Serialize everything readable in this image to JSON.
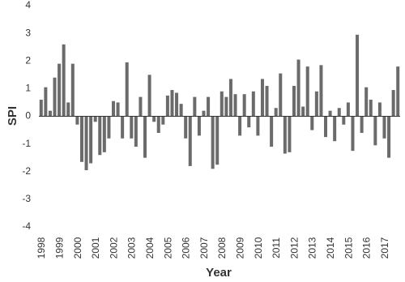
{
  "chart_data": {
    "type": "bar",
    "x_label": "Year",
    "y_label": "SPI",
    "categories": [
      "1998",
      null,
      null,
      null,
      "1999",
      null,
      null,
      null,
      "2000",
      null,
      null,
      null,
      "2001",
      null,
      null,
      null,
      "2002",
      null,
      null,
      null,
      "2003",
      null,
      null,
      null,
      "2004",
      null,
      null,
      null,
      "2005",
      null,
      null,
      null,
      "2006",
      null,
      null,
      null,
      "2007",
      null,
      null,
      null,
      "2008",
      null,
      null,
      null,
      "2009",
      null,
      null,
      null,
      "2010",
      null,
      null,
      null,
      "2011",
      null,
      null,
      null,
      "2012",
      null,
      null,
      null,
      "2013",
      null,
      null,
      null,
      "2014",
      null,
      null,
      null,
      "2015",
      null,
      null,
      null,
      "2016",
      null,
      null,
      null,
      "2017",
      null,
      null,
      null
    ],
    "values": [
      0.6,
      1.05,
      0.2,
      1.4,
      1.9,
      2.6,
      0.5,
      1.9,
      -0.3,
      -1.65,
      -1.95,
      -1.7,
      -0.2,
      -1.4,
      -1.3,
      -0.8,
      0.55,
      0.5,
      -0.8,
      1.95,
      -0.8,
      -1.1,
      0.7,
      -1.5,
      1.5,
      -0.2,
      -0.6,
      -0.3,
      0.75,
      0.95,
      0.85,
      0.45,
      -0.8,
      -1.8,
      0.7,
      -0.7,
      0.2,
      0.7,
      -1.9,
      -1.75,
      0.9,
      0.7,
      1.35,
      0.8,
      -0.7,
      0.8,
      -0.4,
      0.9,
      -0.7,
      1.35,
      1.1,
      -1.1,
      0.3,
      1.55,
      -1.35,
      -1.3,
      1.1,
      2.05,
      0.35,
      1.8,
      -0.5,
      0.9,
      1.85,
      -0.75,
      0.2,
      -0.9,
      0.3,
      -0.3,
      0.5,
      -1.25,
      2.95,
      -0.6,
      1.05,
      0.6,
      -1.05,
      0.5,
      -0.8,
      -1.5,
      0.95,
      1.8
    ],
    "color": "#6b6b6b",
    "ylim": [
      -4,
      4
    ],
    "yticks": [
      -4,
      -3,
      -2,
      -1,
      0,
      1,
      2,
      3,
      4
    ],
    "grid": false
  }
}
